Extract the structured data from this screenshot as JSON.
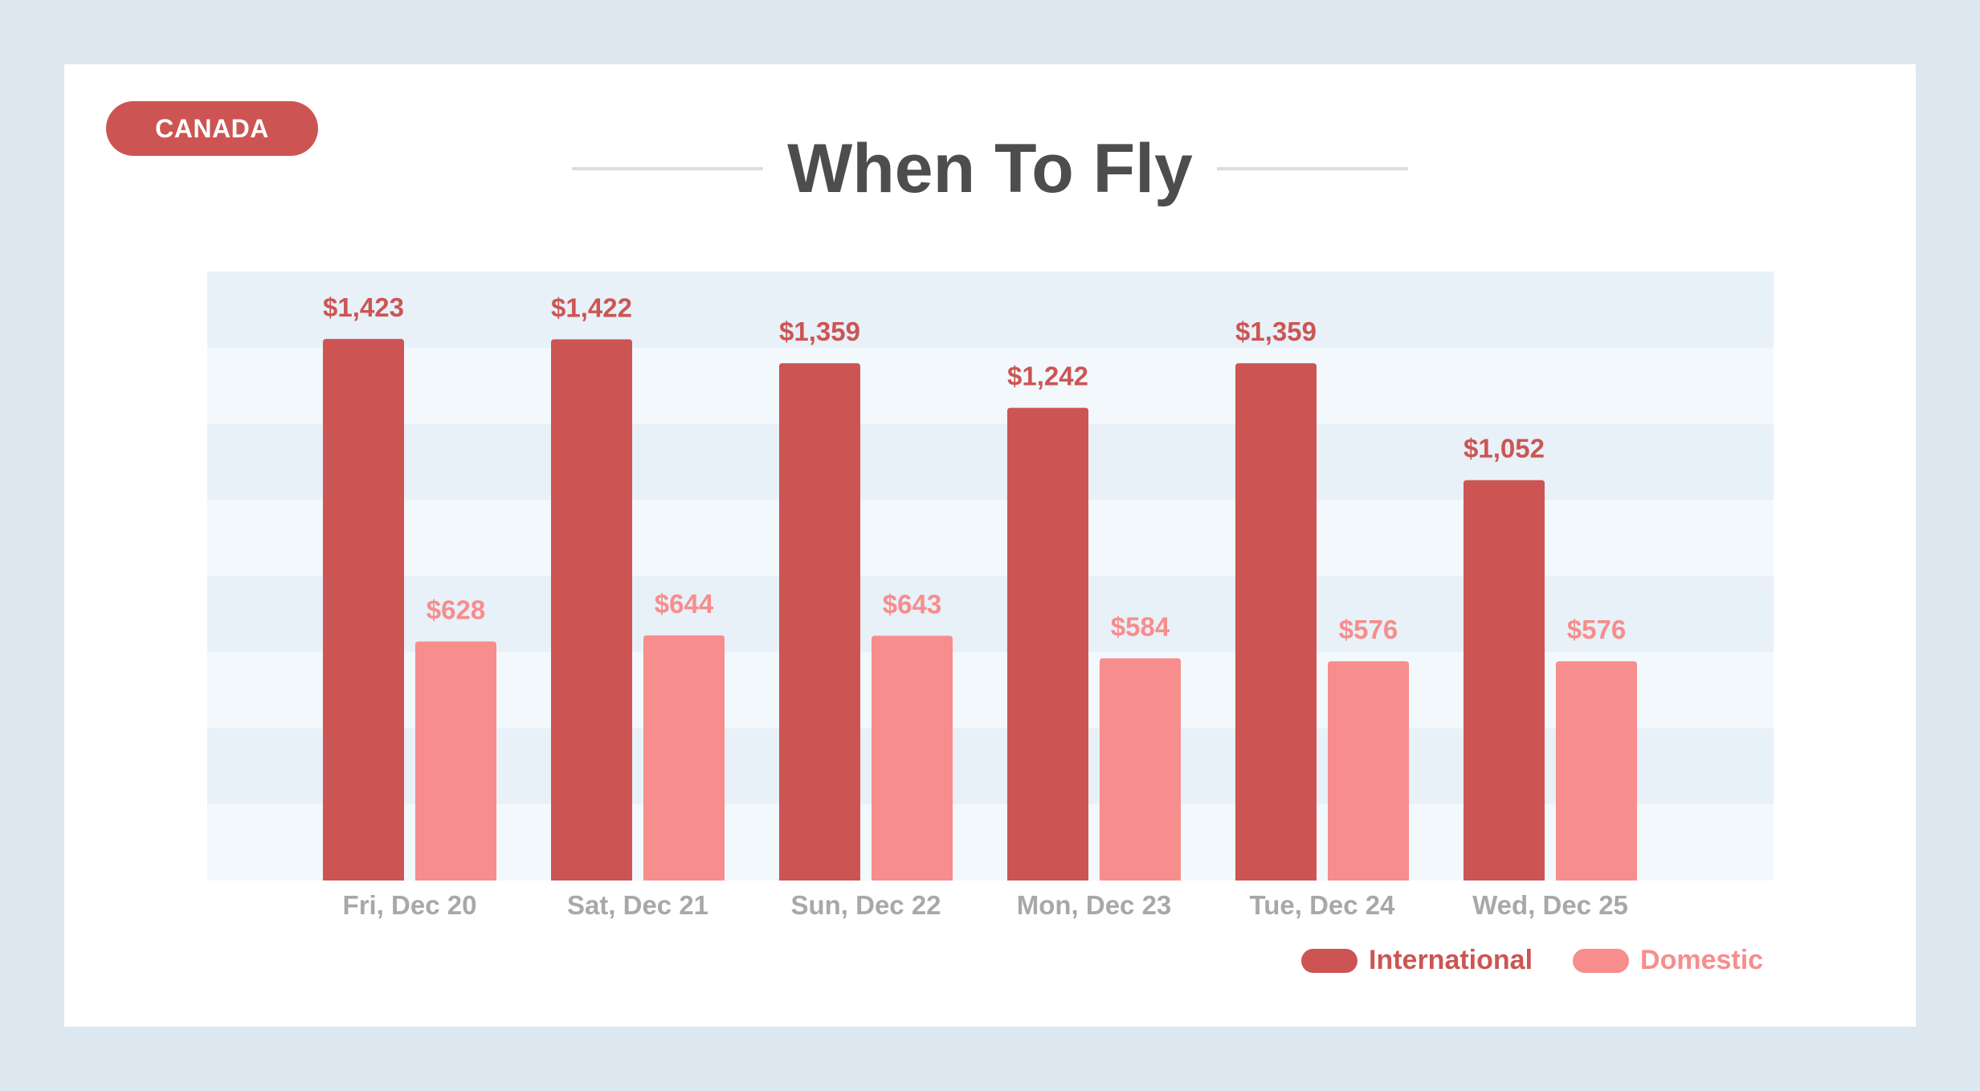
{
  "badge": {
    "label": "CANADA"
  },
  "title": "When To Fly",
  "colors": {
    "page_bg": "#dde7f0",
    "international": "#cc5553",
    "domestic": "#f78d8c",
    "band_dark": "#e8f0f8",
    "band_light": "#f3f8fc",
    "axis_label": "#a8a8a8",
    "title": "#4d4d4d"
  },
  "legend": {
    "international_label": "International",
    "domestic_label": "Domestic"
  },
  "chart_data": {
    "type": "bar",
    "title": "When To Fly",
    "xlabel": "",
    "ylabel": "",
    "ylim": [
      0,
      1600
    ],
    "grid": "horizontal bands",
    "legend_position": "bottom-right",
    "categories": [
      "Fri, Dec 20",
      "Sat, Dec 21",
      "Sun, Dec 22",
      "Mon, Dec 23",
      "Tue, Dec 24",
      "Wed, Dec 25"
    ],
    "series": [
      {
        "name": "International",
        "values": [
          1423,
          1422,
          1359,
          1242,
          1359,
          1052
        ],
        "labels": [
          "$1,423",
          "$1,422",
          "$1,359",
          "$1,242",
          "$1,359",
          "$1,052"
        ]
      },
      {
        "name": "Domestic",
        "values": [
          628,
          644,
          643,
          584,
          576,
          576
        ],
        "labels": [
          "$628",
          "$644",
          "$643",
          "$584",
          "$576",
          "$576"
        ]
      }
    ]
  }
}
